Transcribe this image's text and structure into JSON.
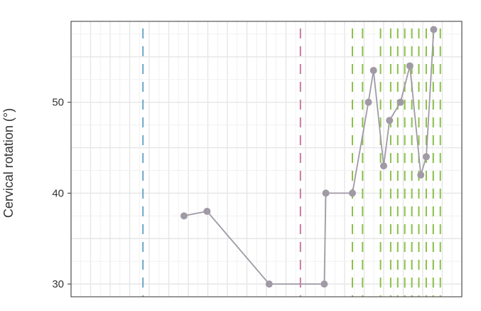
{
  "chart_data": {
    "type": "line",
    "title": "",
    "xlabel": "",
    "ylabel": "Cervical rotation (°)",
    "x_tick_labels_shown": false,
    "ylim": [
      28.6,
      58.9
    ],
    "yticks": [
      30,
      40,
      50
    ],
    "xlim": [
      0,
      100
    ],
    "grid": true,
    "series": [
      {
        "color": "#a09aa5",
        "points": [
          {
            "x": 28.9,
            "y": 37.5
          },
          {
            "x": 34.8,
            "y": 38.0
          },
          {
            "x": 50.7,
            "y": 30.0
          },
          {
            "x": 64.8,
            "y": 30.0
          },
          {
            "x": 65.2,
            "y": 40.0
          },
          {
            "x": 72.0,
            "y": 40.0
          },
          {
            "x": 76.1,
            "y": 50.0
          },
          {
            "x": 77.4,
            "y": 53.5
          },
          {
            "x": 80.0,
            "y": 43.0
          },
          {
            "x": 81.5,
            "y": 48.0
          },
          {
            "x": 84.3,
            "y": 50.0
          },
          {
            "x": 86.7,
            "y": 54.0
          },
          {
            "x": 89.5,
            "y": 42.0
          },
          {
            "x": 90.9,
            "y": 44.0
          },
          {
            "x": 92.8,
            "y": 58.0
          }
        ]
      }
    ],
    "vertical_markers": [
      {
        "x": 18.4,
        "color": "#6aa6c8"
      },
      {
        "x": 58.7,
        "color": "#c97aa1"
      },
      {
        "x": 72.0,
        "color": "#8cc04a"
      },
      {
        "x": 74.6,
        "color": "#8cc04a"
      },
      {
        "x": 79.2,
        "color": "#8cc04a"
      },
      {
        "x": 81.8,
        "color": "#8cc04a"
      },
      {
        "x": 83.6,
        "color": "#8cc04a"
      },
      {
        "x": 85.4,
        "color": "#8cc04a"
      },
      {
        "x": 87.2,
        "color": "#8cc04a"
      },
      {
        "x": 89.0,
        "color": "#8cc04a"
      },
      {
        "x": 90.9,
        "color": "#8cc04a"
      },
      {
        "x": 92.7,
        "color": "#8cc04a"
      },
      {
        "x": 94.5,
        "color": "#8cc04a"
      }
    ]
  }
}
